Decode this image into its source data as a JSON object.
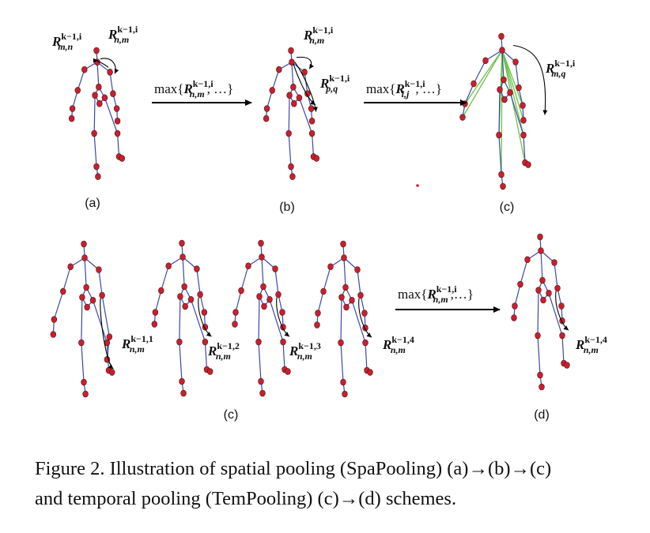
{
  "panels": {
    "a": "(a)",
    "b": "(b)",
    "c_top": "(c)",
    "c_bottom": "(c)",
    "d": "(d)"
  },
  "relations": {
    "a_left": {
      "base": "R",
      "sup": "k−1,i",
      "sub": "m,n"
    },
    "a_right": {
      "base": "R",
      "sup": "k−1,i",
      "sub": "n,m"
    },
    "b_top": {
      "base": "R",
      "sup": "k−1,i",
      "sub": "n,m"
    },
    "b_right": {
      "base": "R",
      "sup": "k−1,i",
      "sub": "p,q"
    },
    "c_right": {
      "base": "R",
      "sup": "k−1,i",
      "sub": "m,q"
    },
    "t1": {
      "base": "R",
      "sup": "k−1,1",
      "sub": "n,m"
    },
    "t2": {
      "base": "R",
      "sup": "k−1,2",
      "sub": "n,m"
    },
    "t3": {
      "base": "R",
      "sup": "k−1,3",
      "sub": "n,m"
    },
    "t4": {
      "base": "R",
      "sup": "k−1,4",
      "sub": "n,m"
    },
    "d": {
      "base": "R",
      "sup": "k−1,4",
      "sub": "n,m"
    }
  },
  "operators": {
    "op1": {
      "pre": "max{",
      "base": "R",
      "sup": "k−1,i",
      "sub": "n,m",
      "post": ", …}"
    },
    "op2": {
      "pre": "max{",
      "base": "R",
      "sup": "k−1,i",
      "sub": "i,j",
      "post": ", …}"
    },
    "op3": {
      "pre": "max{",
      "base": "R",
      "sup": "k−1,i",
      "sub": "n,m",
      "post": ",…}"
    }
  },
  "caption": {
    "line1": "Figure 2. Illustration of spatial pooling (SpaPooling) (a)→(b)→(c)",
    "line2": "and temporal pooling (TemPooling) (c)→(d) schemes."
  },
  "colors": {
    "joint_fill": "#c8202e",
    "joint_stroke": "#4a1015",
    "bone": "#3a4aa6",
    "pool_line": "#6cc24a",
    "arrow": "#000000"
  }
}
